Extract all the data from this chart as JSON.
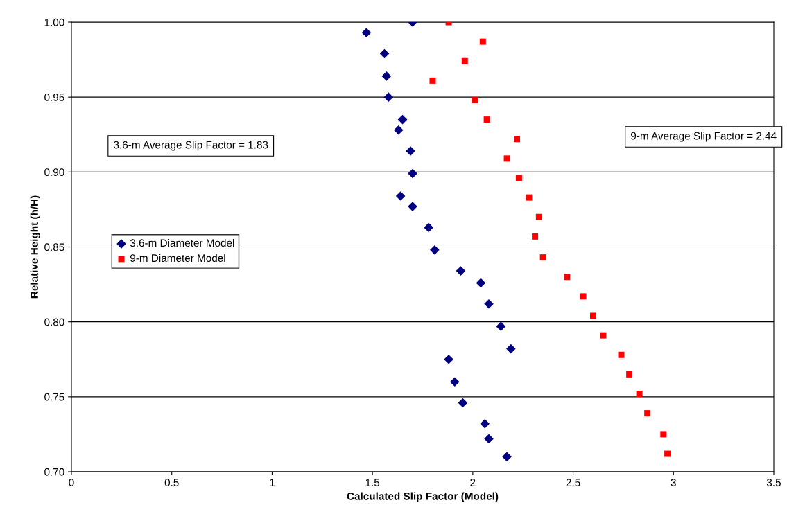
{
  "chart_data": {
    "type": "scatter",
    "xlabel": "Calculated Slip Factor (Model)",
    "ylabel": "Relative Height (h/H)",
    "annotations": [
      "3.6-m Average Slip Factor = 1.83",
      "9-m Average Slip Factor = 2.44"
    ],
    "xlim": [
      0,
      3.5
    ],
    "xticks": [
      0,
      0.5,
      1,
      1.5,
      2,
      2.5,
      3,
      3.5
    ],
    "ylim": [
      0.7,
      1.0
    ],
    "yticks": [
      {
        "value": 0.7,
        "label": "0.70"
      },
      {
        "value": 0.75,
        "label": "0.75"
      },
      {
        "value": 0.8,
        "label": "0.80"
      },
      {
        "value": 0.85,
        "label": "0.85"
      },
      {
        "value": 0.9,
        "label": "0.90"
      },
      {
        "value": 0.95,
        "label": "0.95"
      },
      {
        "value": 1.0,
        "label": "1.00"
      }
    ],
    "grid": "y",
    "legend": "center left",
    "series": [
      {
        "name": "3.6-m Diameter Model",
        "color": "#000080",
        "marker": "diamond",
        "x": [
          1.7,
          1.47,
          1.56,
          1.57,
          1.58,
          1.65,
          1.63,
          1.69,
          1.7,
          1.64,
          1.7,
          1.78,
          1.81,
          1.94,
          2.04,
          2.08,
          2.14,
          2.19,
          1.88,
          1.91,
          1.95,
          2.06,
          2.08,
          2.17
        ],
        "values": [
          1.0,
          0.993,
          0.979,
          0.964,
          0.95,
          0.935,
          0.928,
          0.914,
          0.899,
          0.884,
          0.877,
          0.863,
          0.848,
          0.834,
          0.826,
          0.812,
          0.797,
          0.782,
          0.775,
          0.76,
          0.746,
          0.732,
          0.722,
          0.71
        ]
      },
      {
        "name": "9-m Diameter Model",
        "color": "#ff0000",
        "marker": "square",
        "x": [
          1.88,
          2.05,
          1.96,
          1.8,
          2.01,
          2.07,
          2.22,
          2.17,
          2.23,
          2.28,
          2.33,
          2.31,
          2.35,
          2.47,
          2.55,
          2.6,
          2.65,
          2.74,
          2.78,
          2.83,
          2.87,
          2.95,
          2.97
        ],
        "values": [
          1.0,
          0.987,
          0.974,
          0.961,
          0.948,
          0.935,
          0.922,
          0.909,
          0.896,
          0.883,
          0.87,
          0.857,
          0.843,
          0.83,
          0.817,
          0.804,
          0.791,
          0.778,
          0.765,
          0.752,
          0.739,
          0.725,
          0.712
        ]
      }
    ]
  }
}
